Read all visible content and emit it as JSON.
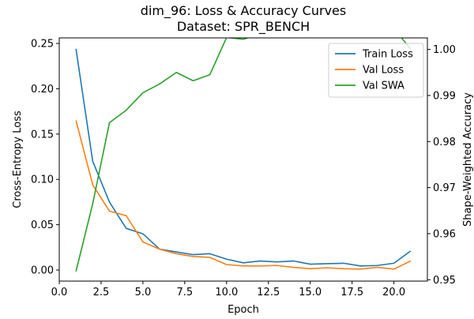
{
  "chart_data": {
    "type": "line",
    "title_line1": "dim_96: Loss & Accuracy Curves",
    "title_line2": "Dataset: SPR_BENCH",
    "xlabel": "Epoch",
    "ylabel_left": "Cross-Entropy Loss",
    "ylabel_right": "Shape-Weighted Accuracy",
    "xlim": [
      0,
      22
    ],
    "ylim_left": [
      -0.0122,
      0.2561
    ],
    "ylim_right": [
      0.9497,
      1.0025
    ],
    "x_ticks": [
      0.0,
      2.5,
      5.0,
      7.5,
      10.0,
      12.5,
      15.0,
      17.5,
      20.0
    ],
    "x_tick_labels": [
      "0.0",
      "2.5",
      "5.0",
      "7.5",
      "10.0",
      "12.5",
      "15.0",
      "17.5",
      "20.0"
    ],
    "y_left_ticks": [
      0.0,
      0.05,
      0.1,
      0.15,
      0.2,
      0.25
    ],
    "y_left_tick_labels": [
      "0.00",
      "0.05",
      "0.10",
      "0.15",
      "0.20",
      "0.25"
    ],
    "y_right_ticks": [
      0.95,
      0.96,
      0.97,
      0.98,
      0.99,
      1.0
    ],
    "y_right_tick_labels": [
      "0.95",
      "0.96",
      "0.97",
      "0.98",
      "0.99",
      "1.00"
    ],
    "grid": false,
    "legend_position": "top-right",
    "x": [
      1,
      2,
      3,
      4,
      5,
      6,
      7,
      8,
      9,
      10,
      11,
      12,
      13,
      14,
      15,
      16,
      17,
      18,
      19,
      20,
      21
    ],
    "series": [
      {
        "name": "Train Loss",
        "axis": "left",
        "color": "#1f77b4",
        "values": [
          0.244,
          0.12,
          0.075,
          0.046,
          0.04,
          0.023,
          0.02,
          0.017,
          0.018,
          0.012,
          0.008,
          0.01,
          0.009,
          0.01,
          0.0065,
          0.007,
          0.0075,
          0.0045,
          0.005,
          0.0075,
          0.021
        ]
      },
      {
        "name": "Val Loss",
        "axis": "left",
        "color": "#ff7f0e",
        "values": [
          0.165,
          0.094,
          0.065,
          0.06,
          0.031,
          0.023,
          0.018,
          0.015,
          0.014,
          0.006,
          0.0045,
          0.0045,
          0.005,
          0.003,
          0.0015,
          0.0025,
          0.0015,
          0.001,
          0.003,
          0.001,
          0.01
        ]
      },
      {
        "name": "Val SWA",
        "axis": "right",
        "color": "#2ca02c",
        "values": [
          0.9518,
          0.9665,
          0.9841,
          0.9868,
          0.9906,
          0.9925,
          0.995,
          0.9932,
          0.9945,
          1.0026,
          1.0022,
          1.0034,
          1.0026,
          1.0044,
          1.005,
          1.0038,
          1.0052,
          1.0056,
          1.0041,
          1.0045,
          1.0001
        ]
      }
    ]
  }
}
